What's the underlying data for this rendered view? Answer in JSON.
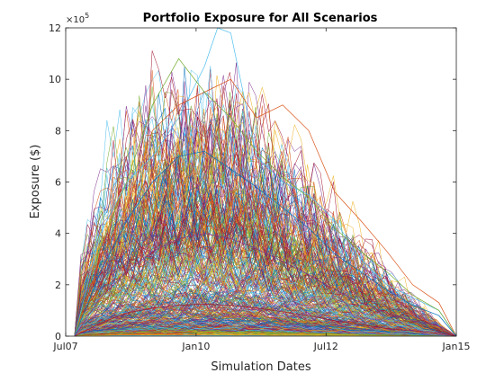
{
  "chart_data": {
    "type": "line",
    "title": "Portfolio Exposure for All Scenarios",
    "xlabel": "Simulation Dates",
    "ylabel": "Exposure ($)",
    "xlim": [
      "2007-07-01",
      "2015-01-01"
    ],
    "ylim": [
      0,
      1200000
    ],
    "y_exponent_label": "×10",
    "y_exponent_power": "5",
    "x_ticks": [
      {
        "date": "2007-07-01",
        "label": "Jul07"
      },
      {
        "date": "2010-01-01",
        "label": "Jan10"
      },
      {
        "date": "2012-07-01",
        "label": "Jul12"
      },
      {
        "date": "2015-01-01",
        "label": "Jan15"
      }
    ],
    "y_ticks": [
      {
        "value": 0,
        "label": "0"
      },
      {
        "value": 200000,
        "label": "2"
      },
      {
        "value": 400000,
        "label": "4"
      },
      {
        "value": 600000,
        "label": "6"
      },
      {
        "value": 800000,
        "label": "8"
      },
      {
        "value": 1000000,
        "label": "10"
      },
      {
        "value": 1200000,
        "label": "12"
      }
    ],
    "grid": false,
    "legend": "none",
    "series_count_note": "",
    "palette": [
      "#0072BD",
      "#D95319",
      "#EDB120",
      "#7E2F8E",
      "#77AC30",
      "#4DBEEE",
      "#A2142F"
    ],
    "representative_series": [
      {
        "x": [
          "2007-09-01",
          "2008-03-01",
          "2008-09-01",
          "2009-03-01",
          "2009-09-01",
          "2010-03-01",
          "2010-06-01",
          "2010-09-01",
          "2011-03-01",
          "2011-09-01",
          "2012-03-01",
          "2012-09-01",
          "2013-03-01",
          "2013-09-01",
          "2014-03-01",
          "2014-09-01",
          "2015-01-01"
        ],
        "y": [
          0,
          400000,
          600000,
          700000,
          850000,
          1050000,
          1200000,
          1180000,
          700000,
          600000,
          550000,
          450000,
          300000,
          200000,
          150000,
          100000,
          0
        ]
      },
      {
        "x": [
          "2007-09-01",
          "2008-03-01",
          "2008-09-01",
          "2009-03-01",
          "2009-09-01",
          "2010-03-01",
          "2010-09-01",
          "2011-03-01",
          "2011-09-01",
          "2012-03-01",
          "2012-09-01",
          "2013-03-01",
          "2013-09-01",
          "2014-03-01",
          "2014-09-01",
          "2015-01-01"
        ],
        "y": [
          0,
          300000,
          500000,
          800000,
          900000,
          950000,
          1000000,
          850000,
          900000,
          800000,
          560000,
          450000,
          330000,
          200000,
          130000,
          0
        ]
      },
      {
        "x": [
          "2007-09-01",
          "2008-03-01",
          "2008-09-01",
          "2009-03-01",
          "2009-09-01",
          "2010-03-01",
          "2010-09-01",
          "2011-03-01",
          "2011-09-01",
          "2012-03-01",
          "2012-09-01",
          "2013-03-01",
          "2013-09-01",
          "2014-03-01",
          "2014-09-01",
          "2015-01-01"
        ],
        "y": [
          0,
          350000,
          600000,
          900000,
          1080000,
          950000,
          850000,
          720000,
          620000,
          540000,
          420000,
          330000,
          250000,
          160000,
          100000,
          0
        ]
      },
      {
        "x": [
          "2007-09-01",
          "2008-03-01",
          "2008-09-01",
          "2009-03-01",
          "2009-09-01",
          "2010-03-01",
          "2010-09-01",
          "2011-03-01",
          "2011-09-01",
          "2012-03-01",
          "2012-09-01",
          "2013-03-01",
          "2013-09-01",
          "2014-03-01",
          "2014-09-01",
          "2015-01-01"
        ],
        "y": [
          0,
          250000,
          450000,
          600000,
          700000,
          720000,
          650000,
          580000,
          500000,
          420000,
          320000,
          250000,
          180000,
          120000,
          80000,
          0
        ]
      },
      {
        "x": [
          "2007-09-01",
          "2008-03-01",
          "2008-09-01",
          "2009-03-01",
          "2009-09-01",
          "2010-03-01",
          "2010-09-01",
          "2011-03-01",
          "2011-09-01",
          "2012-03-01",
          "2012-09-01",
          "2013-03-01",
          "2013-09-01",
          "2014-03-01",
          "2014-09-01",
          "2015-01-01"
        ],
        "y": [
          0,
          150000,
          250000,
          330000,
          380000,
          400000,
          380000,
          340000,
          290000,
          240000,
          180000,
          130000,
          90000,
          60000,
          40000,
          0
        ]
      },
      {
        "x": [
          "2007-09-01",
          "2008-03-01",
          "2008-09-01",
          "2009-03-01",
          "2009-09-01",
          "2010-03-01",
          "2010-09-01",
          "2011-03-01",
          "2011-09-01",
          "2012-03-01",
          "2012-09-01",
          "2013-03-01",
          "2013-09-01",
          "2014-03-01",
          "2014-09-01",
          "2015-01-01"
        ],
        "y": [
          0,
          50000,
          90000,
          110000,
          120000,
          125000,
          120000,
          110000,
          95000,
          80000,
          60000,
          45000,
          30000,
          20000,
          12000,
          0
        ]
      }
    ]
  }
}
